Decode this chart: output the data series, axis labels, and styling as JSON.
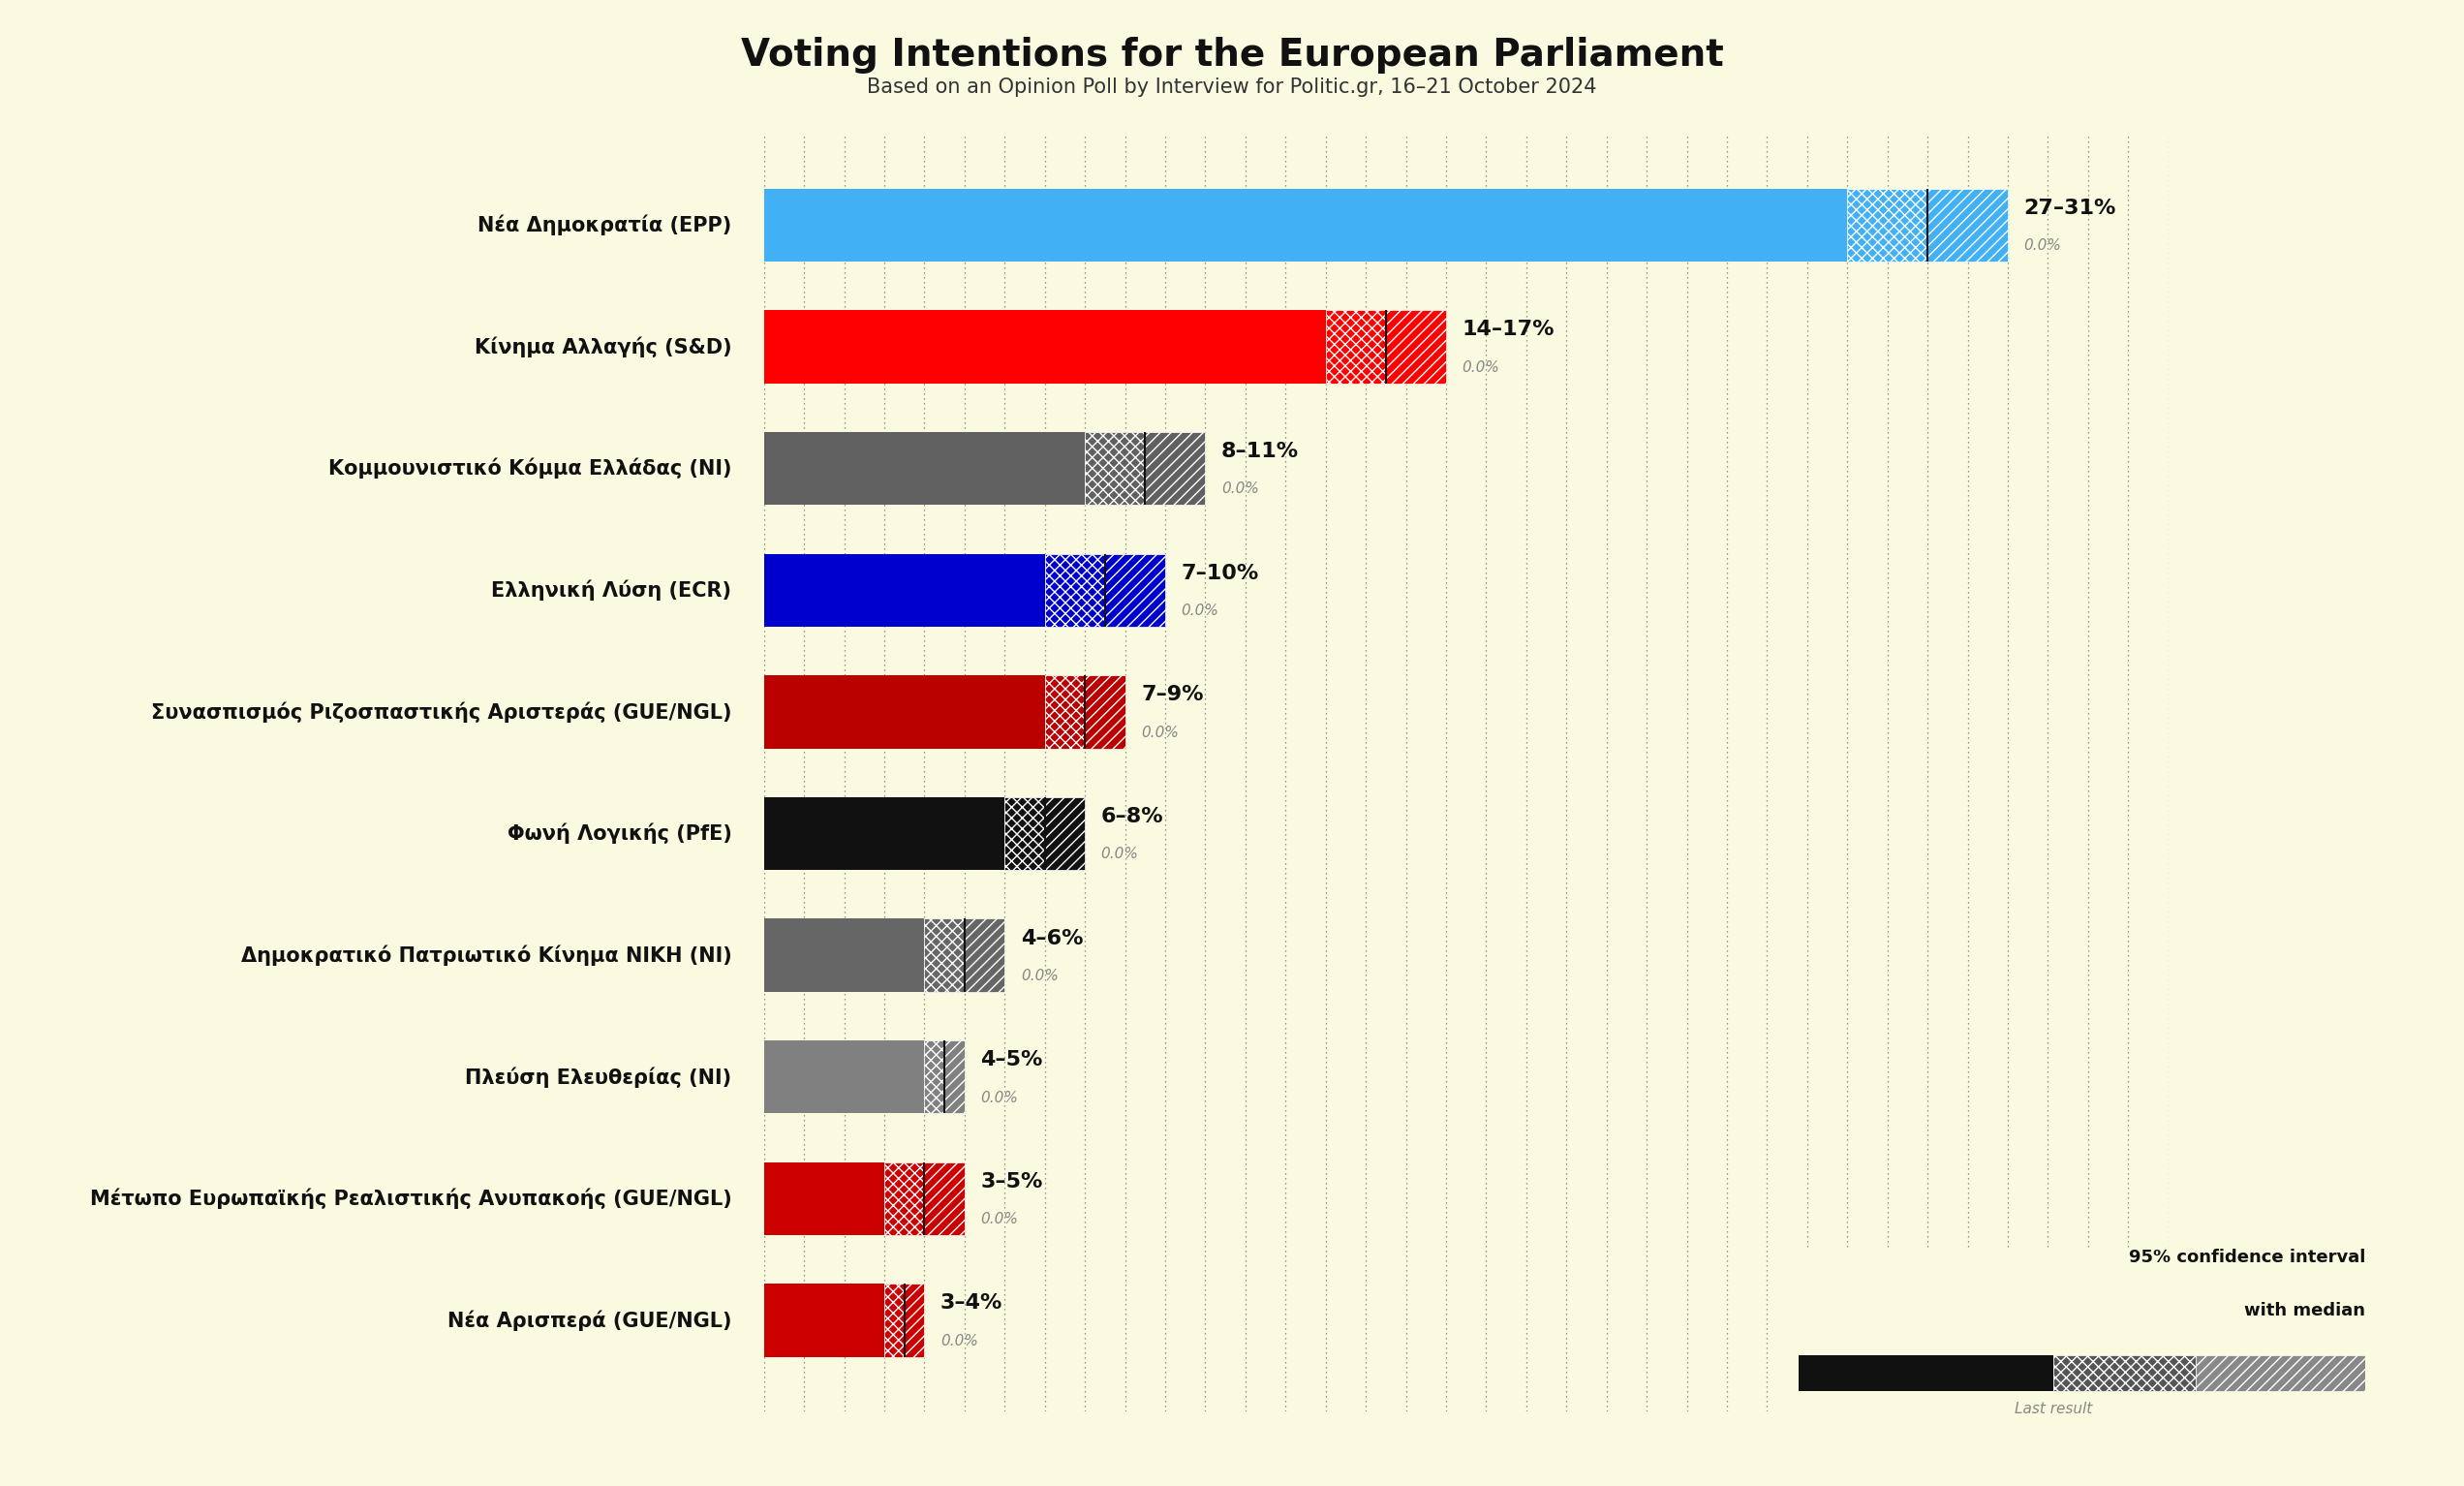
{
  "title": "Voting Intentions for the European Parliament",
  "subtitle": "Based on an Opinion Poll by Interview for Politic.gr, 16–21 October 2024",
  "parties": [
    {
      "name": "Νέα Δημοκρατία (EPP)",
      "low": 27,
      "median": 29,
      "high": 31,
      "color": "#42b0f5",
      "last": 0.0
    },
    {
      "name": "Κίνημα Αλλαγής (S&D)",
      "low": 14,
      "median": 15.5,
      "high": 17,
      "color": "#ff0000",
      "last": 0.0
    },
    {
      "name": "Κομμουνιστικό Κόμμα Ελλάδας (NI)",
      "low": 8,
      "median": 9.5,
      "high": 11,
      "color": "#606060",
      "last": 0.0
    },
    {
      "name": "Ελληνική Λύση (ECR)",
      "low": 7,
      "median": 8.5,
      "high": 10,
      "color": "#0000cc",
      "last": 0.0
    },
    {
      "name": "Συνασπισμός Ριζοσπαστικής Αριστεράς (GUE/NGL)",
      "low": 7,
      "median": 8,
      "high": 9,
      "color": "#bb0000",
      "last": 0.0
    },
    {
      "name": "Φωνή Λογικής (PfE)",
      "low": 6,
      "median": 7,
      "high": 8,
      "color": "#111111",
      "last": 0.0
    },
    {
      "name": "Δημοκρατικό Πατριωτικό Κίνημα ΝΙΚΗ (NI)",
      "low": 4,
      "median": 5,
      "high": 6,
      "color": "#666666",
      "last": 0.0
    },
    {
      "name": "Πλεύση Ελευθερίας (NI)",
      "low": 4,
      "median": 4.5,
      "high": 5,
      "color": "#808080",
      "last": 0.0
    },
    {
      "name": "Μέτωπο Ευρωπαϊκής Ρεαλιστικής Ανυπακοής (GUE/NGL)",
      "low": 3,
      "median": 4,
      "high": 5,
      "color": "#cc0000",
      "last": 0.0
    },
    {
      "name": "Νέα Αρισπερά (GUE/NGL)",
      "low": 3,
      "median": 3.5,
      "high": 4,
      "color": "#cc0000",
      "last": 0.0
    }
  ],
  "xlim": [
    0,
    35
  ],
  "background_color": "#fafae0",
  "bar_height": 0.6,
  "title_fontsize": 28,
  "subtitle_fontsize": 15,
  "label_fontsize": 15,
  "range_fontsize": 16,
  "last_fontsize": 11,
  "legend_text1": "95% confidence interval",
  "legend_text2": "with median",
  "legend_last": "Last result"
}
